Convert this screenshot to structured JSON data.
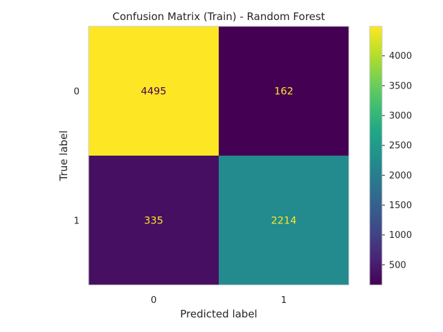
{
  "chart_data": {
    "type": "heatmap",
    "title": "Confusion Matrix (Train) - Random Forest",
    "xlabel": "Predicted label",
    "ylabel": "True label",
    "x_categories": [
      "0",
      "1"
    ],
    "y_categories": [
      "0",
      "1"
    ],
    "values": [
      [
        4495,
        162
      ],
      [
        335,
        2214
      ]
    ],
    "colormap": "viridis",
    "colorbar": {
      "range": [
        162,
        4495
      ],
      "ticks": [
        500,
        1000,
        1500,
        2000,
        2500,
        3000,
        3500,
        4000
      ],
      "tick_labels": [
        "500",
        "1000",
        "1500",
        "2000",
        "2500",
        "3000",
        "3500",
        "4000"
      ]
    },
    "grid": false,
    "colors": {
      "text_on_dark": "#fde725",
      "text_on_light": "#440154",
      "frame": "#cccccc"
    }
  }
}
